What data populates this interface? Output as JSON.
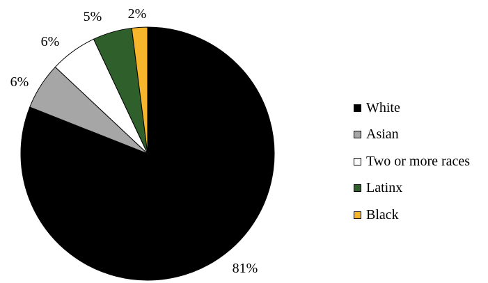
{
  "chart_data": {
    "type": "pie",
    "title": "",
    "slices": [
      {
        "label": "White",
        "value": 81,
        "display": "81%",
        "color": "#000000"
      },
      {
        "label": "Asian",
        "value": 6,
        "display": "6%",
        "color": "#a6a6a6"
      },
      {
        "label": "Two or more races",
        "value": 6,
        "display": "6%",
        "color": "#ffffff"
      },
      {
        "label": "Latinx",
        "value": 5,
        "display": "5%",
        "color": "#2f5f2b"
      },
      {
        "label": "Black",
        "value": 2,
        "display": "2%",
        "color": "#f7b52c"
      }
    ],
    "legend_position": "right",
    "start_angle": "12 o'clock",
    "direction": "clockwise"
  }
}
